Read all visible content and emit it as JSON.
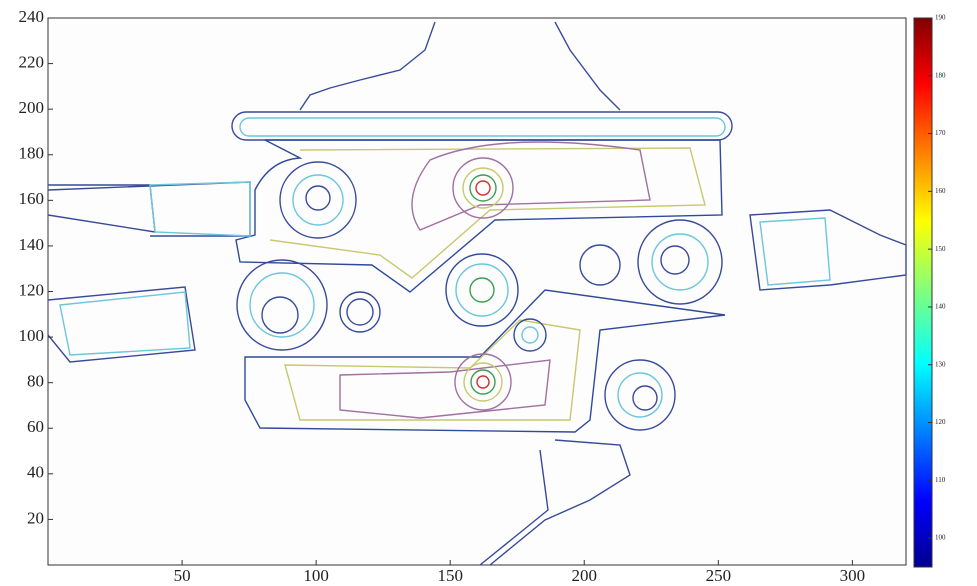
{
  "chart_data": {
    "type": "contour",
    "xlim": [
      0,
      320
    ],
    "xticks": [
      50,
      100,
      150,
      200,
      250,
      300
    ],
    "ylim": [
      0,
      240
    ],
    "yticks": [
      20,
      40,
      60,
      80,
      100,
      120,
      140,
      160,
      180,
      200,
      220,
      240
    ],
    "colorbar": {
      "clim": [
        95,
        190
      ],
      "ticks": [
        100,
        110,
        120,
        130,
        140,
        150,
        160,
        170,
        180,
        190
      ],
      "colormap": "jet"
    }
  }
}
